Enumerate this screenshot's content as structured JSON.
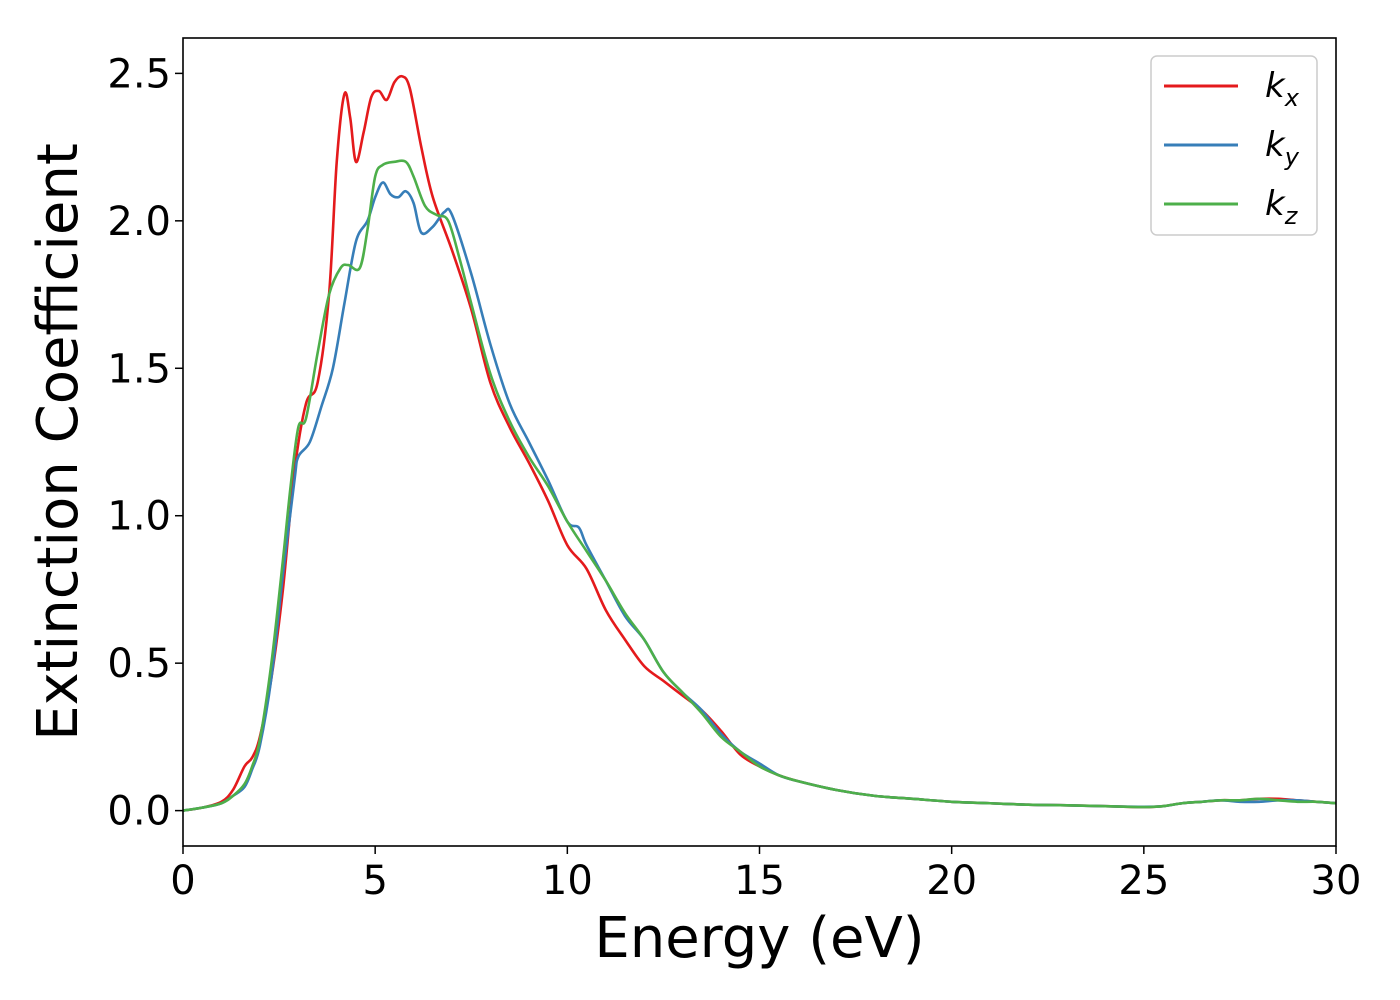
{
  "chart_data": {
    "type": "line",
    "title": "",
    "xlabel": "Energy (eV)",
    "ylabel": "Extinction Coefficient",
    "xlim": [
      0,
      30
    ],
    "ylim": [
      -0.12,
      2.62
    ],
    "xticks": [
      0,
      5,
      10,
      15,
      20,
      25,
      30
    ],
    "xtick_labels": [
      "0",
      "5",
      "10",
      "15",
      "20",
      "25",
      "30"
    ],
    "yticks": [
      0.0,
      0.5,
      1.0,
      1.5,
      2.0,
      2.5
    ],
    "ytick_labels": [
      "0.0",
      "0.5",
      "1.0",
      "1.5",
      "2.0",
      "2.5"
    ],
    "grid": false,
    "legend_position": "top-right",
    "series": [
      {
        "name": "k_x",
        "legend_base": "k",
        "legend_sub": "x",
        "color": "#e41a1c",
        "x": [
          0,
          0.5,
          1.0,
          1.3,
          1.6,
          1.8,
          2.0,
          2.3,
          2.6,
          2.9,
          3.2,
          3.5,
          3.8,
          4.0,
          4.2,
          4.35,
          4.5,
          4.7,
          4.9,
          5.1,
          5.3,
          5.5,
          5.7,
          5.9,
          6.2,
          6.5,
          7.0,
          7.5,
          8.0,
          8.5,
          9.0,
          9.5,
          10.0,
          10.5,
          11.0,
          11.5,
          12.0,
          12.5,
          13.0,
          13.5,
          14.0,
          14.5,
          15.0,
          15.5,
          16.0,
          17.0,
          18.0,
          19.0,
          20.0,
          21.0,
          22.0,
          23.0,
          24.0,
          25.0,
          25.5,
          26.0,
          26.5,
          27.0,
          27.5,
          28.0,
          28.5,
          29.0,
          29.5,
          30.0
        ],
        "y": [
          0.0,
          0.01,
          0.03,
          0.07,
          0.15,
          0.18,
          0.25,
          0.45,
          0.75,
          1.15,
          1.38,
          1.45,
          1.75,
          2.2,
          2.43,
          2.35,
          2.2,
          2.3,
          2.42,
          2.44,
          2.41,
          2.47,
          2.49,
          2.45,
          2.25,
          2.08,
          1.9,
          1.7,
          1.45,
          1.3,
          1.18,
          1.05,
          0.9,
          0.82,
          0.68,
          0.58,
          0.49,
          0.44,
          0.39,
          0.34,
          0.27,
          0.19,
          0.15,
          0.12,
          0.1,
          0.07,
          0.05,
          0.04,
          0.03,
          0.025,
          0.02,
          0.018,
          0.015,
          0.012,
          0.015,
          0.025,
          0.03,
          0.035,
          0.035,
          0.04,
          0.04,
          0.035,
          0.03,
          0.025
        ]
      },
      {
        "name": "k_y",
        "legend_base": "k",
        "legend_sub": "y",
        "color": "#377eb8",
        "x": [
          0,
          0.5,
          1.0,
          1.3,
          1.6,
          1.8,
          2.0,
          2.3,
          2.6,
          2.9,
          3.0,
          3.3,
          3.6,
          3.9,
          4.2,
          4.5,
          4.8,
          5.0,
          5.2,
          5.4,
          5.6,
          5.8,
          6.0,
          6.2,
          6.5,
          6.8,
          7.0,
          7.5,
          8.0,
          8.5,
          9.0,
          9.5,
          10.0,
          10.3,
          10.5,
          11.0,
          11.5,
          12.0,
          12.5,
          13.0,
          13.5,
          14.0,
          14.5,
          15.0,
          15.5,
          16.0,
          17.0,
          18.0,
          19.0,
          20.0,
          21.0,
          22.0,
          23.0,
          24.0,
          25.0,
          25.5,
          26.0,
          26.5,
          27.0,
          27.5,
          28.0,
          28.5,
          29.0,
          29.5,
          30.0
        ],
        "y": [
          0.0,
          0.01,
          0.025,
          0.05,
          0.08,
          0.14,
          0.22,
          0.45,
          0.8,
          1.12,
          1.2,
          1.25,
          1.37,
          1.5,
          1.72,
          1.93,
          2.0,
          2.08,
          2.13,
          2.09,
          2.08,
          2.1,
          2.06,
          1.96,
          1.98,
          2.03,
          2.02,
          1.82,
          1.58,
          1.38,
          1.25,
          1.12,
          0.98,
          0.96,
          0.9,
          0.78,
          0.66,
          0.58,
          0.47,
          0.4,
          0.34,
          0.26,
          0.2,
          0.16,
          0.12,
          0.1,
          0.07,
          0.05,
          0.04,
          0.03,
          0.025,
          0.02,
          0.018,
          0.015,
          0.013,
          0.015,
          0.025,
          0.03,
          0.035,
          0.03,
          0.03,
          0.035,
          0.035,
          0.03,
          0.025
        ]
      },
      {
        "name": "k_z",
        "legend_base": "k",
        "legend_sub": "z",
        "color": "#4daf4a",
        "x": [
          0,
          0.5,
          1.0,
          1.3,
          1.6,
          1.8,
          2.0,
          2.3,
          2.6,
          2.8,
          3.0,
          3.2,
          3.5,
          3.8,
          4.1,
          4.3,
          4.6,
          4.8,
          5.0,
          5.2,
          5.5,
          5.8,
          6.0,
          6.3,
          6.6,
          6.9,
          7.2,
          7.5,
          8.0,
          8.5,
          9.0,
          9.5,
          10.0,
          10.5,
          11.0,
          11.5,
          12.0,
          12.5,
          13.0,
          13.5,
          14.0,
          14.5,
          15.0,
          15.5,
          16.0,
          17.0,
          18.0,
          19.0,
          20.0,
          21.0,
          22.0,
          23.0,
          24.0,
          25.0,
          25.5,
          26.0,
          26.5,
          27.0,
          27.5,
          28.0,
          28.5,
          29.0,
          29.5,
          30.0
        ],
        "y": [
          0.0,
          0.01,
          0.025,
          0.05,
          0.09,
          0.15,
          0.24,
          0.5,
          0.85,
          1.1,
          1.3,
          1.33,
          1.55,
          1.75,
          1.84,
          1.85,
          1.84,
          1.97,
          2.15,
          2.19,
          2.2,
          2.2,
          2.15,
          2.05,
          2.02,
          2.0,
          1.87,
          1.72,
          1.48,
          1.32,
          1.2,
          1.1,
          0.98,
          0.88,
          0.78,
          0.67,
          0.58,
          0.47,
          0.4,
          0.33,
          0.25,
          0.2,
          0.15,
          0.12,
          0.1,
          0.07,
          0.05,
          0.04,
          0.03,
          0.025,
          0.02,
          0.018,
          0.015,
          0.012,
          0.015,
          0.025,
          0.03,
          0.035,
          0.035,
          0.04,
          0.035,
          0.03,
          0.03,
          0.025
        ]
      }
    ]
  }
}
